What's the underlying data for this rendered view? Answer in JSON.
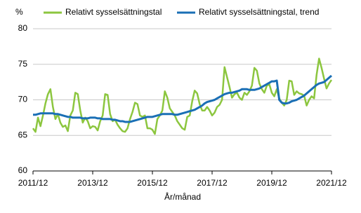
{
  "chart_data": {
    "type": "line",
    "y_unit": "%",
    "x_label": "År/månad",
    "x": [
      "2011/12",
      "2012/01",
      "2012/02",
      "2012/03",
      "2012/04",
      "2012/05",
      "2012/06",
      "2012/07",
      "2012/08",
      "2012/09",
      "2012/10",
      "2012/11",
      "2012/12",
      "2013/01",
      "2013/02",
      "2013/03",
      "2013/04",
      "2013/05",
      "2013/06",
      "2013/07",
      "2013/08",
      "2013/09",
      "2013/10",
      "2013/11",
      "2013/12",
      "2014/01",
      "2014/02",
      "2014/03",
      "2014/04",
      "2014/05",
      "2014/06",
      "2014/07",
      "2014/08",
      "2014/09",
      "2014/10",
      "2014/11",
      "2014/12",
      "2015/01",
      "2015/02",
      "2015/03",
      "2015/04",
      "2015/05",
      "2015/06",
      "2015/07",
      "2015/08",
      "2015/09",
      "2015/10",
      "2015/11",
      "2015/12",
      "2016/01",
      "2016/02",
      "2016/03",
      "2016/04",
      "2016/05",
      "2016/06",
      "2016/07",
      "2016/08",
      "2016/09",
      "2016/10",
      "2016/11",
      "2016/12",
      "2017/01",
      "2017/02",
      "2017/03",
      "2017/04",
      "2017/05",
      "2017/06",
      "2017/07",
      "2017/08",
      "2017/09",
      "2017/10",
      "2017/11",
      "2017/12",
      "2018/01",
      "2018/02",
      "2018/03",
      "2018/04",
      "2018/05",
      "2018/06",
      "2018/07",
      "2018/08",
      "2018/09",
      "2018/10",
      "2018/11",
      "2018/12",
      "2019/01",
      "2019/02",
      "2019/03",
      "2019/04",
      "2019/05",
      "2019/06",
      "2019/07",
      "2019/08",
      "2019/09",
      "2019/10",
      "2019/11",
      "2019/12",
      "2020/01",
      "2020/02",
      "2020/03",
      "2020/04",
      "2020/05",
      "2020/06",
      "2020/07",
      "2020/08",
      "2020/09",
      "2020/10",
      "2020/11",
      "2020/12",
      "2021/01",
      "2021/02",
      "2021/03",
      "2021/04",
      "2021/05",
      "2021/06",
      "2021/07",
      "2021/08",
      "2021/09",
      "2021/10",
      "2021/11",
      "2021/12"
    ],
    "xticks": [
      "2011/12",
      "2013/12",
      "2015/12",
      "2017/12",
      "2019/12",
      "2021/12"
    ],
    "ylim": [
      60,
      80
    ],
    "yticks": [
      60,
      65,
      70,
      75,
      80
    ],
    "grid": true,
    "series": [
      {
        "name": "Relativt sysselsättningstal",
        "color": "#8cc63f",
        "values": [
          66.0,
          65.5,
          67.5,
          66.3,
          67.8,
          69.5,
          70.8,
          71.5,
          69.0,
          67.3,
          68.0,
          66.8,
          66.2,
          66.4,
          65.6,
          67.8,
          68.5,
          71.0,
          70.8,
          68.5,
          66.8,
          67.5,
          67.0,
          66.0,
          66.3,
          66.2,
          65.7,
          67.0,
          67.8,
          70.8,
          70.7,
          68.0,
          67.0,
          67.2,
          66.5,
          66.0,
          65.6,
          65.5,
          66.0,
          67.3,
          68.3,
          69.6,
          69.4,
          67.8,
          67.6,
          67.8,
          66.0,
          66.0,
          65.8,
          65.2,
          67.3,
          67.8,
          68.5,
          71.2,
          70.3,
          68.8,
          68.3,
          67.8,
          67.0,
          66.5,
          66.0,
          65.8,
          67.6,
          67.8,
          69.8,
          71.3,
          70.9,
          69.4,
          68.5,
          68.5,
          69.0,
          68.5,
          67.8,
          68.2,
          69.0,
          69.3,
          70.0,
          74.6,
          73.2,
          71.8,
          70.3,
          70.8,
          71.0,
          70.3,
          70.0,
          71.0,
          70.7,
          71.2,
          72.0,
          74.5,
          74.1,
          72.3,
          71.5,
          71.0,
          72.0,
          72.2,
          71.0,
          70.5,
          71.5,
          70.2,
          69.6,
          69.2,
          70.0,
          72.7,
          72.6,
          70.7,
          71.2,
          70.9,
          70.8,
          70.6,
          69.2,
          70.0,
          70.5,
          70.2,
          73.5,
          75.8,
          74.5,
          73.0,
          71.6,
          72.3,
          72.8
        ]
      },
      {
        "name": "Relativt sysselsättningstal, trend",
        "color": "#1a6fb5",
        "values": [
          67.9,
          67.9,
          68.0,
          68.1,
          68.1,
          68.1,
          68.1,
          68.1,
          68.1,
          68.0,
          68.0,
          67.9,
          67.8,
          67.7,
          67.6,
          67.6,
          67.5,
          67.5,
          67.5,
          67.5,
          67.4,
          67.4,
          67.4,
          67.5,
          67.5,
          67.5,
          67.4,
          67.4,
          67.3,
          67.3,
          67.3,
          67.3,
          67.2,
          67.2,
          67.1,
          67.0,
          67.0,
          66.9,
          66.9,
          66.9,
          67.0,
          67.1,
          67.2,
          67.3,
          67.4,
          67.5,
          67.6,
          67.6,
          67.6,
          67.7,
          67.8,
          67.9,
          68.0,
          68.0,
          68.0,
          68.0,
          68.0,
          67.9,
          67.9,
          68.0,
          68.1,
          68.2,
          68.3,
          68.4,
          68.5,
          68.6,
          68.8,
          69.0,
          69.2,
          69.5,
          69.7,
          69.8,
          69.9,
          70.0,
          70.2,
          70.4,
          70.6,
          70.8,
          70.9,
          71.0,
          71.0,
          71.1,
          71.2,
          71.3,
          71.5,
          71.5,
          71.5,
          71.4,
          71.4,
          71.4,
          71.5,
          71.6,
          71.8,
          72.0,
          72.2,
          72.4,
          72.6,
          72.6,
          72.7,
          70.0,
          69.6,
          69.5,
          69.5,
          69.6,
          69.8,
          69.9,
          70.0,
          70.2,
          70.4,
          70.6,
          70.9,
          71.2,
          71.5,
          71.8,
          72.1,
          72.3,
          72.4,
          72.5,
          72.8,
          73.1,
          73.4
        ]
      }
    ]
  }
}
